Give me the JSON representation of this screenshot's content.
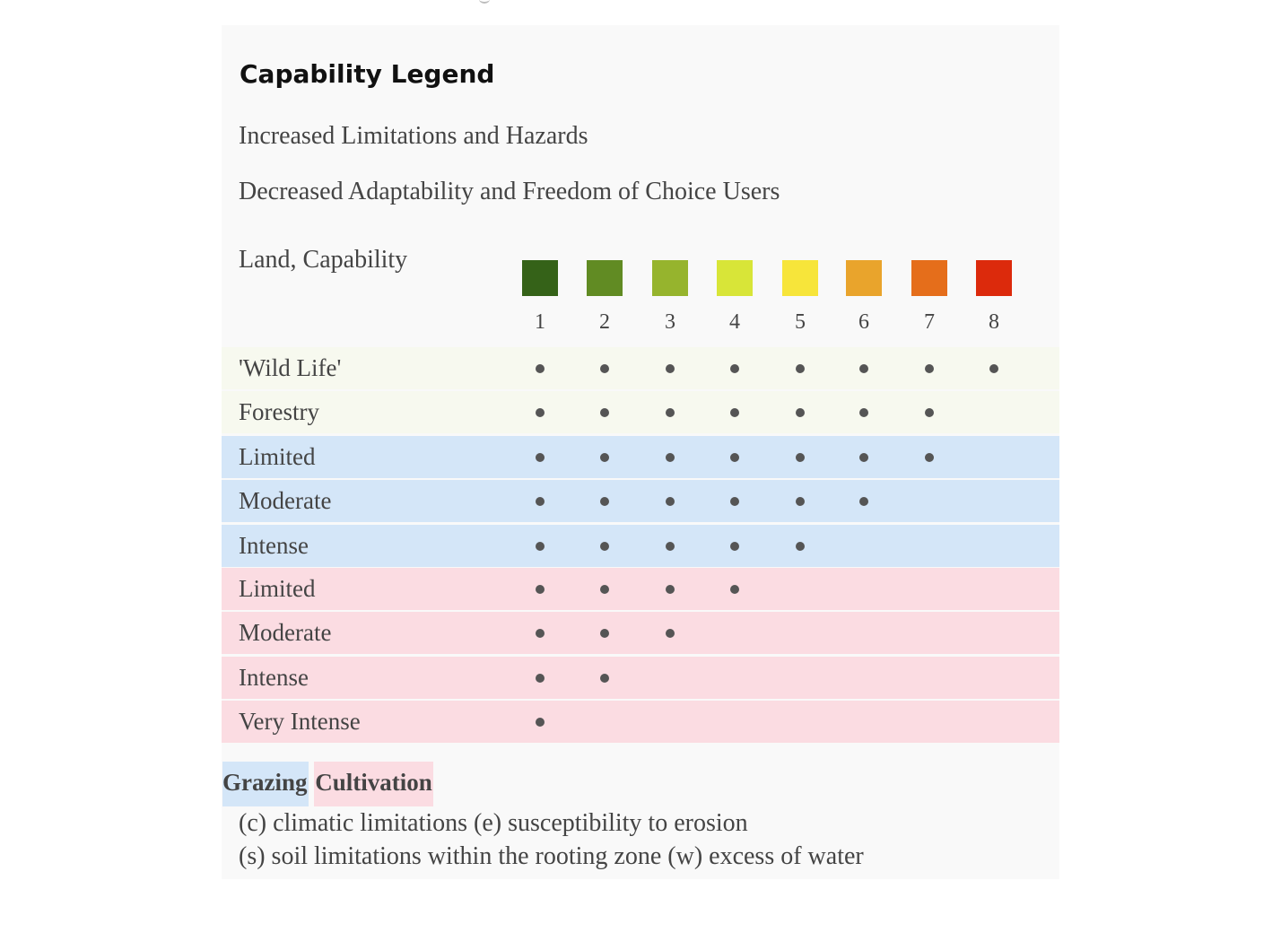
{
  "title": "Capability Legend",
  "subtitles": [
    "Increased Limitations and Hazards",
    "Decreased Adaptability and Freedom of Choice Users"
  ],
  "header_label": "Land, Capability",
  "classes": [
    {
      "number": "1",
      "color": "#356218"
    },
    {
      "number": "2",
      "color": "#618b23"
    },
    {
      "number": "3",
      "color": "#96b42d"
    },
    {
      "number": "4",
      "color": "#d8e538"
    },
    {
      "number": "5",
      "color": "#f7e53a"
    },
    {
      "number": "6",
      "color": "#e9a42c"
    },
    {
      "number": "7",
      "color": "#e56e1b"
    },
    {
      "number": "8",
      "color": "#dc2a0c"
    }
  ],
  "rows": [
    {
      "label": "'Wild Life'",
      "group": "wildlife",
      "max_class": 8
    },
    {
      "label": "Forestry",
      "group": "wildlife",
      "max_class": 7
    },
    {
      "label": "Limited",
      "group": "grazing",
      "max_class": 7
    },
    {
      "label": "Moderate",
      "group": "grazing",
      "max_class": 6
    },
    {
      "label": "Intense",
      "group": "grazing",
      "max_class": 5
    },
    {
      "label": "Limited",
      "group": "cultivation",
      "max_class": 4
    },
    {
      "label": "Moderate",
      "group": "cultivation",
      "max_class": 3
    },
    {
      "label": "Intense",
      "group": "cultivation",
      "max_class": 2
    },
    {
      "label": "Very Intense",
      "group": "cultivation",
      "max_class": 1
    }
  ],
  "group_colors": {
    "wildlife": "#f7f9ef",
    "grazing": "#d4e6f8",
    "cultivation": "#fbdce2"
  },
  "legend": {
    "grazing": "Grazing",
    "cultivation": "Cultivation"
  },
  "footnotes": [
    "(c) climatic limitations (e) susceptibility to erosion",
    "(s) soil limitations within the rooting zone (w) excess of water"
  ]
}
